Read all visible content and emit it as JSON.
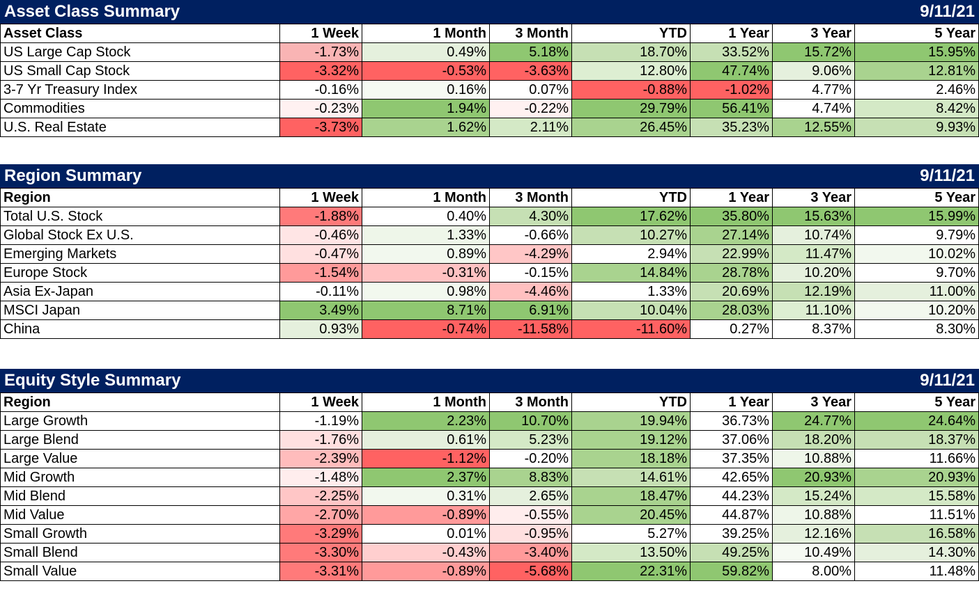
{
  "columns": [
    "1 Week",
    "1 Month",
    "3 Month",
    "YTD",
    "1 Year",
    "3 Year",
    "5 Year"
  ],
  "tables": [
    {
      "title": "Asset Class Summary",
      "date": "9/11/21",
      "first_col": "Asset Class",
      "rows": [
        {
          "label": "US Large Cap Stock",
          "values": [
            "-1.73%",
            "0.49%",
            "5.18%",
            "18.70%",
            "33.52%",
            "15.72%",
            "15.95%"
          ],
          "colors": [
            "#F9B4B4",
            "#E5F0DD",
            "#8FC771",
            "#C6E0B4",
            "#C6E0B4",
            "#8FC771",
            "#8FC771"
          ]
        },
        {
          "label": "US Small Cap Stock",
          "values": [
            "-3.32%",
            "-0.53%",
            "-3.63%",
            "12.80%",
            "47.74%",
            "9.06%",
            "12.81%"
          ],
          "colors": [
            "#FF6262",
            "#FF6262",
            "#FF6262",
            "#DDEED2",
            "#8FC771",
            "#E5F0DD",
            "#A9D38F"
          ]
        },
        {
          "label": "3-7 Yr Treasury Index",
          "values": [
            "-0.16%",
            "0.16%",
            "0.07%",
            "-0.88%",
            "-1.02%",
            "4.77%",
            "2.46%"
          ],
          "colors": [
            "#FFFFFF",
            "#F6FAF3",
            "#FFFFFF",
            "#FF6262",
            "#FF6262",
            "#FFFFFF",
            "#FFFFFF"
          ]
        },
        {
          "label": "Commodities",
          "values": [
            "-0.23%",
            "1.94%",
            "-0.22%",
            "29.79%",
            "56.41%",
            "4.74%",
            "8.42%"
          ],
          "colors": [
            "#FFF1F1",
            "#8FC771",
            "#FFF1F1",
            "#8FC771",
            "#8FC771",
            "#FFFFFF",
            "#D4E9C6"
          ]
        },
        {
          "label": "U.S. Real Estate",
          "values": [
            "-3.73%",
            "1.62%",
            "2.11%",
            "26.45%",
            "35.23%",
            "12.55%",
            "9.93%"
          ],
          "colors": [
            "#FF6262",
            "#A9D38F",
            "#D4E9C6",
            "#A9D38F",
            "#C6E0B4",
            "#A9D38F",
            "#C6E0B4"
          ]
        }
      ]
    },
    {
      "title": "Region Summary",
      "date": "9/11/21",
      "first_col": "Region",
      "rows": [
        {
          "label": "Total U.S. Stock",
          "values": [
            "-1.88%",
            "0.40%",
            "4.30%",
            "17.62%",
            "35.80%",
            "15.63%",
            "15.99%"
          ],
          "colors": [
            "#FF7A7A",
            "#FFFFFF",
            "#C6E0B4",
            "#8FC771",
            "#8FC771",
            "#8FC771",
            "#8FC771"
          ]
        },
        {
          "label": "Global Stock Ex U.S.",
          "values": [
            "-0.46%",
            "1.33%",
            "-0.66%",
            "10.27%",
            "27.14%",
            "10.74%",
            "9.79%"
          ],
          "colors": [
            "#FFE5E5",
            "#EEF6E9",
            "#FFFFFF",
            "#C6E0B4",
            "#A9D38F",
            "#E5F0DD",
            "#FFFFFF"
          ]
        },
        {
          "label": "Emerging Markets",
          "values": [
            "-0.47%",
            "0.89%",
            "-4.29%",
            "2.94%",
            "22.99%",
            "11.47%",
            "10.02%"
          ],
          "colors": [
            "#FFE0E0",
            "#F2F8EE",
            "#FFC6C6",
            "#FFFFFF",
            "#C6E0B4",
            "#D4E9C6",
            "#F2F8EE"
          ]
        },
        {
          "label": "Europe Stock",
          "values": [
            "-1.54%",
            "-0.31%",
            "-0.15%",
            "14.84%",
            "28.78%",
            "10.20%",
            "9.70%"
          ],
          "colors": [
            "#FF9A9A",
            "#FFC2C2",
            "#FFFFFF",
            "#A9D38F",
            "#A9D38F",
            "#E5F0DD",
            "#FFFFFF"
          ]
        },
        {
          "label": "Asia Ex-Japan",
          "values": [
            "-0.11%",
            "0.98%",
            "-4.46%",
            "1.33%",
            "20.69%",
            "12.19%",
            "11.00%"
          ],
          "colors": [
            "#FFFFFF",
            "#F2F8EE",
            "#FFC0C0",
            "#FFFFFF",
            "#C6E0B4",
            "#C6E0B4",
            "#E5F0DD"
          ]
        },
        {
          "label": "MSCI Japan",
          "values": [
            "3.49%",
            "8.71%",
            "6.91%",
            "10.04%",
            "28.03%",
            "11.10%",
            "10.20%"
          ],
          "colors": [
            "#8FC771",
            "#8FC771",
            "#8FC771",
            "#C6E0B4",
            "#A9D38F",
            "#DDEED2",
            "#F2F8EE"
          ]
        },
        {
          "label": "China",
          "values": [
            "0.93%",
            "-0.74%",
            "-11.58%",
            "-11.60%",
            "0.27%",
            "8.37%",
            "8.30%"
          ],
          "colors": [
            "#E5F0DD",
            "#FF6262",
            "#FF6262",
            "#FF6262",
            "#FFFFFF",
            "#FFFFFF",
            "#FFFFFF"
          ]
        }
      ]
    },
    {
      "title": "Equity Style Summary",
      "date": "9/11/21",
      "first_col": "Region",
      "rows": [
        {
          "label": "Large Growth",
          "values": [
            "-1.19%",
            "2.23%",
            "10.70%",
            "19.94%",
            "36.73%",
            "24.77%",
            "24.64%"
          ],
          "colors": [
            "#FFFFFF",
            "#8FC771",
            "#8FC771",
            "#A9D38F",
            "#FFFFFF",
            "#8FC771",
            "#8FC771"
          ]
        },
        {
          "label": "Large Blend",
          "values": [
            "-1.76%",
            "0.61%",
            "5.23%",
            "19.12%",
            "37.06%",
            "18.20%",
            "18.37%"
          ],
          "colors": [
            "#FFE0E0",
            "#E5F0DD",
            "#D4E9C6",
            "#A9D38F",
            "#FFFFFF",
            "#C6E0B4",
            "#C6E0B4"
          ]
        },
        {
          "label": "Large Value",
          "values": [
            "-2.39%",
            "-1.12%",
            "-0.20%",
            "18.18%",
            "37.35%",
            "10.88%",
            "11.66%"
          ],
          "colors": [
            "#FFBCBC",
            "#FF6262",
            "#FFFFFF",
            "#A9D38F",
            "#FFFFFF",
            "#EEF6E9",
            "#FFFFFF"
          ]
        },
        {
          "label": "Mid Growth",
          "values": [
            "-1.48%",
            "2.37%",
            "8.83%",
            "14.61%",
            "42.65%",
            "20.93%",
            "20.93%"
          ],
          "colors": [
            "#FFEDED",
            "#8FC771",
            "#A9D38F",
            "#C6E0B4",
            "#FFFFFF",
            "#8FC771",
            "#A9D38F"
          ]
        },
        {
          "label": "Mid Blend",
          "values": [
            "-2.25%",
            "0.31%",
            "2.65%",
            "18.47%",
            "44.23%",
            "15.24%",
            "15.58%"
          ],
          "colors": [
            "#FFC6C6",
            "#F2F8EE",
            "#E5F0DD",
            "#A9D38F",
            "#FFFFFF",
            "#D4E9C6",
            "#D4E9C6"
          ]
        },
        {
          "label": "Mid Value",
          "values": [
            "-2.70%",
            "-0.89%",
            "-0.55%",
            "20.45%",
            "44.87%",
            "10.88%",
            "11.51%"
          ],
          "colors": [
            "#FFA6A6",
            "#FF9A9A",
            "#FFEDED",
            "#A9D38F",
            "#FFFFFF",
            "#EEF6E9",
            "#FFFFFF"
          ]
        },
        {
          "label": "Small Growth",
          "values": [
            "-3.29%",
            "0.01%",
            "-0.95%",
            "5.27%",
            "39.25%",
            "12.16%",
            "16.58%"
          ],
          "colors": [
            "#FF7A7A",
            "#FFFFFF",
            "#FFE0E0",
            "#FFFFFF",
            "#FFFFFF",
            "#E5F0DD",
            "#C6E0B4"
          ]
        },
        {
          "label": "Small Blend",
          "values": [
            "-3.30%",
            "-0.43%",
            "-3.40%",
            "13.50%",
            "49.25%",
            "10.49%",
            "14.30%"
          ],
          "colors": [
            "#FF7A7A",
            "#FFCFCF",
            "#FF9A9A",
            "#D4E9C6",
            "#C6E0B4",
            "#F6FAF3",
            "#E5F0DD"
          ]
        },
        {
          "label": "Small Value",
          "values": [
            "-3.31%",
            "-0.89%",
            "-5.68%",
            "22.31%",
            "59.82%",
            "8.00%",
            "11.48%"
          ],
          "colors": [
            "#FF7A7A",
            "#FF9A9A",
            "#FF6262",
            "#8FC771",
            "#8FC771",
            "#FFFFFF",
            "#FFFFFF"
          ]
        }
      ]
    }
  ]
}
